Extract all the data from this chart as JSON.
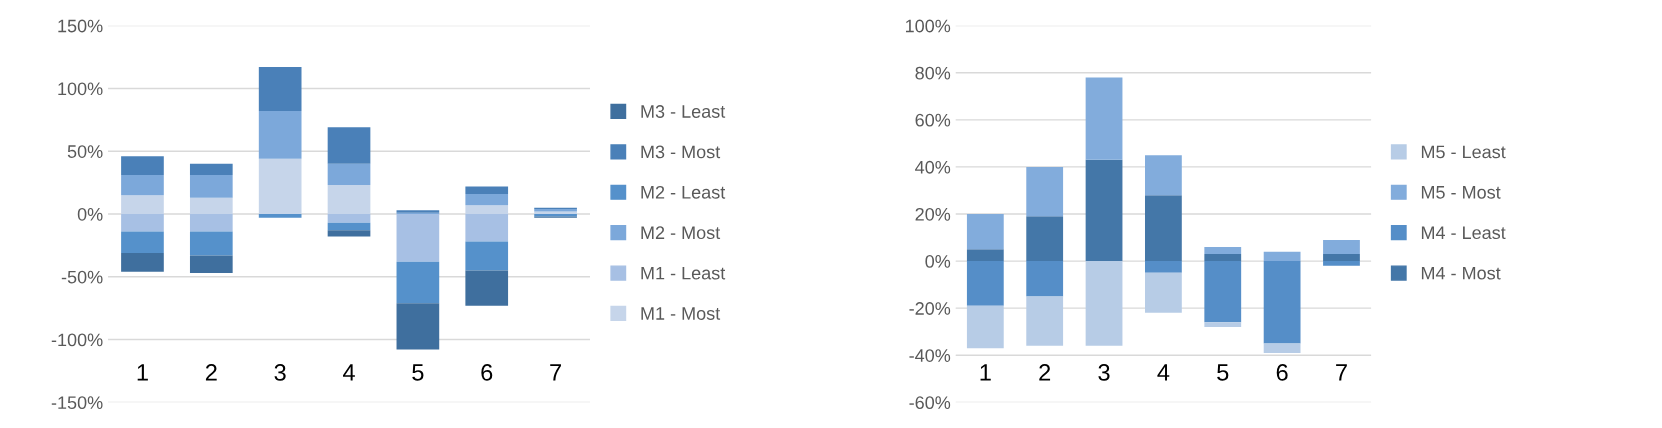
{
  "chart_data": [
    {
      "type": "bar",
      "stacked": true,
      "grid": "y",
      "legend": "right",
      "categories": [
        "1",
        "2",
        "3",
        "4",
        "5",
        "6",
        "7"
      ],
      "ylim": [
        -150,
        150
      ],
      "yticks": [
        {
          "value": -150,
          "label": "-150%"
        },
        {
          "value": -100,
          "label": "-100%"
        },
        {
          "value": -50,
          "label": "-50%"
        },
        {
          "value": 0,
          "label": "0%"
        },
        {
          "value": 50,
          "label": "50%"
        },
        {
          "value": 100,
          "label": "100%"
        },
        {
          "value": 150,
          "label": "150%"
        }
      ],
      "series": [
        {
          "name": "M1 - Most",
          "color": "#c6d5ea",
          "values": [
            15,
            13,
            44,
            23,
            null,
            7,
            2
          ]
        },
        {
          "name": "M1 - Least",
          "color": "#a7c0e4",
          "values": [
            -14,
            -14,
            null,
            -7,
            -38,
            -22,
            null
          ]
        },
        {
          "name": "M2 - Most",
          "color": "#7ca8da",
          "values": [
            16,
            18,
            38,
            17,
            1,
            9,
            2
          ]
        },
        {
          "name": "M2 - Least",
          "color": "#5591cb",
          "values": [
            -17,
            -19,
            -3,
            -6,
            -33,
            -23,
            -2
          ]
        },
        {
          "name": "M3 - Most",
          "color": "#4a80b8",
          "values": [
            15,
            9,
            35,
            29,
            2,
            6,
            1
          ]
        },
        {
          "name": "M3 - Least",
          "color": "#3f6f9e",
          "values": [
            -15,
            -14,
            0,
            -5,
            -37,
            -28,
            -1
          ]
        }
      ]
    },
    {
      "type": "bar",
      "stacked": true,
      "grid": "y",
      "legend": "right",
      "categories": [
        "1",
        "2",
        "3",
        "4",
        "5",
        "6",
        "7"
      ],
      "ylim": [
        -60,
        100
      ],
      "yticks": [
        {
          "value": -60,
          "label": "-60%"
        },
        {
          "value": -40,
          "label": "-40%"
        },
        {
          "value": -20,
          "label": "-20%"
        },
        {
          "value": 0,
          "label": "0%"
        },
        {
          "value": 20,
          "label": "20%"
        },
        {
          "value": 40,
          "label": "40%"
        },
        {
          "value": 60,
          "label": "60%"
        },
        {
          "value": 80,
          "label": "80%"
        },
        {
          "value": 100,
          "label": "100%"
        }
      ],
      "series": [
        {
          "name": "M4 - Most",
          "color": "#4477a8",
          "values": [
            5,
            19,
            43,
            28,
            3,
            0,
            3
          ]
        },
        {
          "name": "M4 - Least",
          "color": "#558ec8",
          "values": [
            -19,
            -15,
            0,
            -5,
            -26,
            -35,
            -2
          ]
        },
        {
          "name": "M5 - Most",
          "color": "#82acdc",
          "values": [
            15,
            21,
            35,
            17,
            3,
            4,
            6
          ]
        },
        {
          "name": "M5 - Least",
          "color": "#b7cce6",
          "values": [
            -18,
            -21,
            -36,
            -17,
            -2,
            -4,
            0
          ]
        }
      ]
    }
  ]
}
